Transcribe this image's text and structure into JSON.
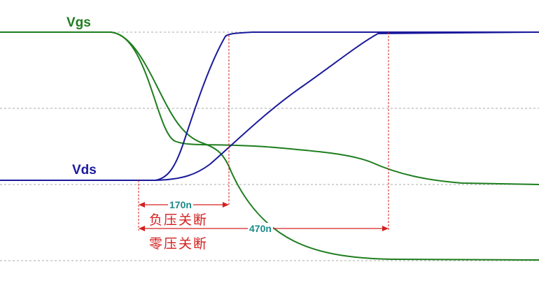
{
  "labels": {
    "vgs": "Vgs",
    "vds": "Vds"
  },
  "annotations": {
    "t1": "170n",
    "t1_caption": "负压关断",
    "t2": "470n",
    "t2_caption": "零压关断"
  },
  "colors": {
    "vgs": "#1e7d1e",
    "vds": "#1a1a9c",
    "annotation": "#d42020",
    "time_label": "#1a8a8a",
    "grid": "#999999"
  }
}
